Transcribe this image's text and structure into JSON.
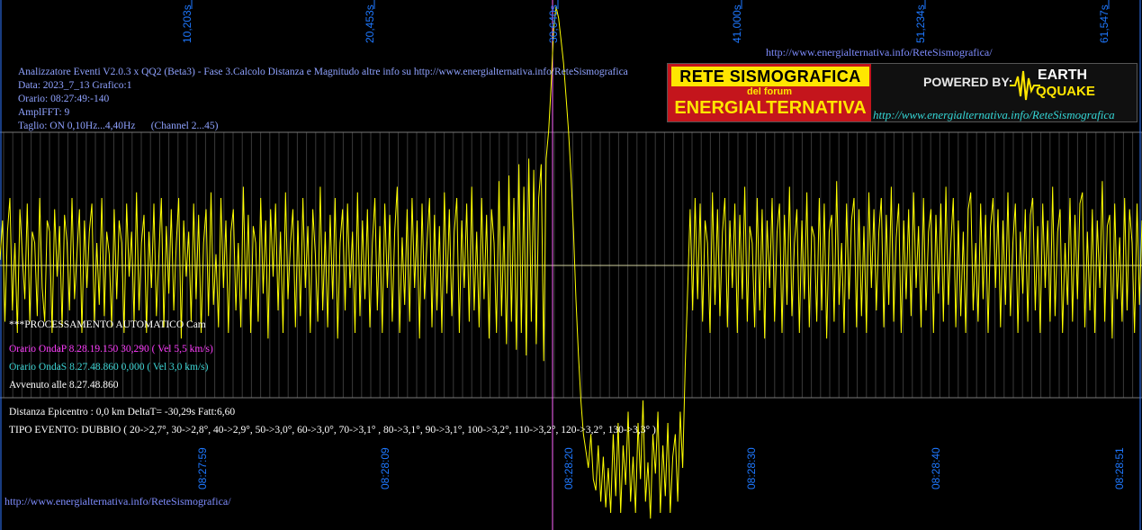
{
  "header": {
    "line1": "Analizzatore Eventi V2.0.3 x QQ2 (Beta3) - Fase 3.Calcolo Distanza e Magnitudo altre info su http://www.energialternativa.info/ReteSismografica",
    "line2": "Data: 2023_7_13 Grafico:1",
    "line3": "Orario: 08:27:49:-140",
    "line4": "AmplFFT: 9",
    "line5": "Taglio: ON 0,10Hz...4,40Hz      (Channel 2...45)"
  },
  "top_url": "http://www.energialternativa.info/ReteSismografica/",
  "bottom_url": "http://www.energialternativa.info/ReteSismografica/",
  "logo": {
    "line1": "RETE SISMOGRAFICA",
    "line2": "del forum",
    "line3": "ENERGIALTERNATIVA",
    "powered": "POWERED BY:",
    "brand_top": "EARTH",
    "brand_bottom": "QQUAKE",
    "url": "http://www.energialternativa.info/ReteSismografica"
  },
  "processing": {
    "status": "***PROCESSAMENTO AUTOMATICO Cam",
    "onda_p": "Orario OndaP 8.28.19.150  30,290 ( Vel 5,5 km/s)",
    "onda_s": "Orario OndaS 8.27.48.860  0,000 ( Vel 3,0 km/s)",
    "avvenuto": "Avvenuto alle 8.27.48.860",
    "distanza": "Distanza Epicentro : 0,0 km DeltaT= -30,29s  Fatt:6,60",
    "tipo_evento": "TIPO EVENTO: DUBBIO ( 20->2,7°, 30->2,8°, 40->2,9°, 50->3,0°, 60->3,0°, 70->3,1° , 80->3,1°, 90->3,1°, 100->3,2°, 110->3,2°, 120->3,2°, 130->3,3° )"
  },
  "colors": {
    "background": "#000000",
    "signal": "#ffff00",
    "grid": "#7a7a7a",
    "axis_label": "#1e78ff",
    "p_marker": "#ff66ff"
  },
  "chart_data": {
    "type": "line",
    "seconds_ticks": [
      "10,203s",
      "20,453s",
      "30,640s",
      "41,000s",
      "51,234s",
      "61,547s"
    ],
    "time_ticks": [
      "08:27:59",
      "08:28:09",
      "08:28:20",
      "08:28:30",
      "08:28:40",
      "08:28:51"
    ],
    "p_wave_time": "08:28:19.150",
    "series": [
      {
        "values": [
          0.05,
          0.4,
          -0.5,
          0.3,
          0.6,
          -0.4,
          0.2,
          -0.6,
          0.5,
          0.1,
          -0.3,
          0.55,
          -0.5,
          0.3,
          0.2,
          -0.45,
          0.6,
          -0.2,
          -0.5,
          0.4,
          0.3,
          -0.6,
          0.5,
          -0.1,
          0.35,
          -0.55,
          0.45,
          0.2,
          -0.4,
          0.6,
          -0.3,
          0.1,
          0.5,
          -0.6,
          0.4,
          -0.2,
          0.3,
          0.55,
          -0.5,
          0.2,
          -0.35,
          0.6,
          -0.45,
          0.3,
          0.1,
          -0.55,
          0.5,
          -0.3,
          0.4,
          0.2,
          -0.6,
          0.55,
          -0.1,
          0.3,
          -0.5,
          0.65,
          -0.4,
          0.2,
          0.45,
          -0.6,
          0.3,
          -0.2,
          0.55,
          -0.45,
          0.1,
          0.6,
          -0.55,
          0.35,
          -0.25,
          0.5,
          -0.4,
          0.2,
          0.6,
          -0.65,
          0.4,
          -0.1,
          0.3,
          -0.5,
          0.55,
          -0.3,
          0.45,
          -0.6,
          0.2,
          0.5,
          -0.45,
          0.65,
          -0.35,
          0.1,
          -0.55,
          0.6,
          -0.2,
          0.4,
          -0.6,
          0.3,
          0.5,
          -0.4,
          0.2,
          -0.55,
          0.7,
          -0.3,
          0.45,
          -0.6,
          0.35,
          0.2,
          -0.5,
          0.6,
          -0.25,
          0.4,
          -0.65,
          0.5,
          -0.1,
          0.55,
          -0.4,
          0.3,
          -0.6,
          0.65,
          -0.3,
          0.2,
          0.5,
          -0.55,
          0.4,
          -0.45,
          0.6,
          -0.2,
          0.35,
          -0.6,
          0.5,
          0.1,
          -0.5,
          0.7,
          -0.4,
          0.3,
          -0.55,
          0.45,
          -0.3,
          0.6,
          -0.65,
          0.2,
          0.5,
          -0.4,
          0.55,
          -0.2,
          0.3,
          -0.6,
          0.65,
          -0.45,
          0.4,
          -0.3,
          0.5,
          -0.55,
          0.2,
          0.6,
          -0.4,
          0.35,
          -0.6,
          0.55,
          -0.2,
          0.45,
          -0.5,
          0.3,
          0.7,
          -0.6,
          0.25,
          -0.35,
          0.5,
          -0.5,
          0.6,
          -0.2,
          0.4,
          -0.65,
          0.55,
          -0.3,
          0.2,
          0.6,
          -0.55,
          0.45,
          -0.4,
          0.35,
          -0.6,
          0.65,
          -0.25,
          0.5,
          -0.45,
          0.3,
          0.6,
          -0.6,
          0.4,
          -0.2,
          0.55,
          -0.5,
          0.7,
          -0.4,
          0.3,
          -0.55,
          0.6,
          -0.3,
          0.45,
          -0.65,
          0.5,
          0.2,
          -0.6,
          0.75,
          -0.45,
          0.35,
          -0.7,
          0.8,
          -0.5,
          0.6,
          -0.75,
          0.9,
          -0.6,
          0.7,
          -0.8,
          0.95,
          -0.5,
          0.85,
          -0.7,
          0.6,
          0.9,
          -0.85,
          0.95,
          1.2,
          1.6,
          2.1,
          2.3,
          2.2,
          2.0,
          1.8,
          1.5,
          1.2,
          0.8,
          0.3,
          -0.3,
          -0.8,
          -1.2,
          -1.5,
          -1.65,
          -1.8,
          -1.5,
          -1.9,
          -2.0,
          -1.6,
          -2.1,
          -1.7,
          -2.15,
          -1.8,
          -2.2,
          -1.5,
          -2.05,
          -1.4,
          -2.2,
          -1.6,
          -1.95,
          -1.3,
          -2.1,
          -1.7,
          -2.2,
          -1.4,
          -1.9,
          -1.2,
          -2.1,
          -1.75,
          -2.25,
          -1.5,
          -1.85,
          -1.3,
          -2.2,
          -1.6,
          -2.05,
          -1.4,
          -2.2,
          -1.7,
          -1.5,
          -2.1,
          -1.3,
          -1.8,
          -0.9,
          -0.2,
          0.5,
          -0.4,
          0.6,
          -0.3,
          0.55,
          -0.5,
          0.4,
          0.2,
          -0.6,
          0.65,
          -0.35,
          0.5,
          -0.45,
          0.3,
          0.6,
          -0.55,
          0.4,
          -0.2,
          0.55,
          -0.6,
          0.45,
          -0.3,
          0.7,
          -0.5,
          0.35,
          0.2,
          -0.55,
          0.6,
          -0.4,
          0.5,
          -0.65,
          0.4,
          -0.2,
          0.6,
          -0.5,
          0.3,
          0.55,
          -0.6,
          0.45,
          -0.35,
          0.7,
          -0.45,
          0.2,
          0.5,
          -0.6,
          0.4,
          -0.3,
          0.65,
          -0.55,
          0.35,
          0.25,
          -0.5,
          0.6,
          -0.4,
          0.55,
          -0.65,
          0.3,
          0.45,
          -0.5,
          0.75,
          -0.35,
          0.2,
          -0.6,
          0.55,
          -0.3,
          0.4,
          0.6,
          -0.55,
          0.5,
          -0.45,
          0.35,
          -0.6,
          0.65,
          -0.2,
          0.5,
          -0.4,
          0.3,
          0.6,
          -0.55,
          0.45,
          -0.35,
          0.7,
          -0.5,
          0.25,
          0.55,
          -0.6,
          0.4,
          -0.3,
          0.5,
          -0.45,
          0.65,
          -0.2,
          0.35,
          -0.55,
          0.6,
          -0.4,
          0.3,
          0.5,
          -0.6,
          0.45,
          -0.25,
          0.55,
          -0.5,
          0.7,
          -0.35,
          0.2,
          0.6,
          -0.55,
          0.4,
          -0.45,
          0.3,
          -0.6,
          0.5,
          0.65,
          -0.4,
          0.2,
          -0.5,
          0.55,
          -0.3,
          0.45,
          -0.6,
          0.35,
          0.6,
          -0.2,
          0.5,
          -0.55,
          0.4,
          -0.35,
          0.65,
          -0.45,
          0.2,
          0.55,
          -0.6,
          0.3,
          -0.25,
          0.5,
          -0.5,
          0.45,
          0.6,
          -0.4,
          0.35,
          -0.6,
          0.55,
          -0.2,
          0.4,
          -0.5,
          0.7,
          -0.45,
          0.3,
          0.5,
          -0.6,
          0.2,
          -0.35,
          0.6,
          -0.5,
          0.45,
          -0.3,
          0.55,
          0.65,
          -0.55,
          0.3,
          -0.4,
          0.5,
          -0.6,
          0.4,
          -0.2,
          0.75,
          -0.5,
          0.35,
          0.45,
          -0.65,
          0.55,
          -0.3,
          0.25,
          -0.5,
          0.6,
          -0.4,
          0.5,
          0.2,
          -0.6,
          0.55,
          -0.35,
          0.4
        ]
      }
    ]
  }
}
